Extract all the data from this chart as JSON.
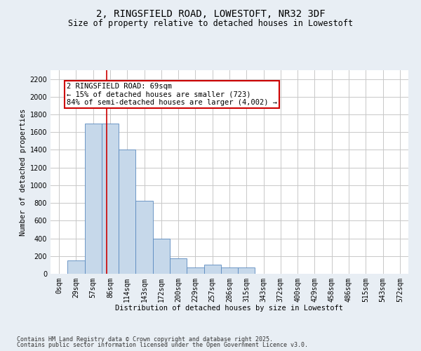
{
  "title_line1": "2, RINGSFIELD ROAD, LOWESTOFT, NR32 3DF",
  "title_line2": "Size of property relative to detached houses in Lowestoft",
  "xlabel": "Distribution of detached houses by size in Lowestoft",
  "ylabel": "Number of detached properties",
  "bar_values": [
    0,
    150,
    1700,
    1700,
    1400,
    825,
    400,
    175,
    75,
    100,
    75,
    75,
    0,
    0,
    0,
    0,
    0,
    0,
    0,
    0,
    0
  ],
  "bar_labels": [
    "0sqm",
    "29sqm",
    "57sqm",
    "86sqm",
    "114sqm",
    "143sqm",
    "172sqm",
    "200sqm",
    "229sqm",
    "257sqm",
    "286sqm",
    "315sqm",
    "343sqm",
    "372sqm",
    "400sqm",
    "429sqm",
    "458sqm",
    "486sqm",
    "515sqm",
    "543sqm",
    "572sqm"
  ],
  "bar_color": "#c6d8ea",
  "bar_edge_color": "#5a8abf",
  "bar_width": 1.0,
  "ylim": [
    0,
    2300
  ],
  "yticks": [
    0,
    200,
    400,
    600,
    800,
    1000,
    1200,
    1400,
    1600,
    1800,
    2000,
    2200
  ],
  "grid_color": "#c8c8c8",
  "grid_linewidth": 0.7,
  "annotation_text_line1": "2 RINGSFIELD ROAD: 69sqm",
  "annotation_text_line2": "← 15% of detached houses are smaller (723)",
  "annotation_text_line3": "84% of semi-detached houses are larger (4,002) →",
  "red_line_x": 2.8,
  "red_line_color": "#cc0000",
  "footer_line1": "Contains HM Land Registry data © Crown copyright and database right 2025.",
  "footer_line2": "Contains public sector information licensed under the Open Government Licence v3.0.",
  "bg_color": "#e8eef4",
  "plot_bg_color": "#ffffff",
  "title_fontsize": 10,
  "subtitle_fontsize": 8.5,
  "tick_fontsize": 7,
  "label_fontsize": 7.5,
  "annotation_fontsize": 7.5,
  "footer_fontsize": 6
}
